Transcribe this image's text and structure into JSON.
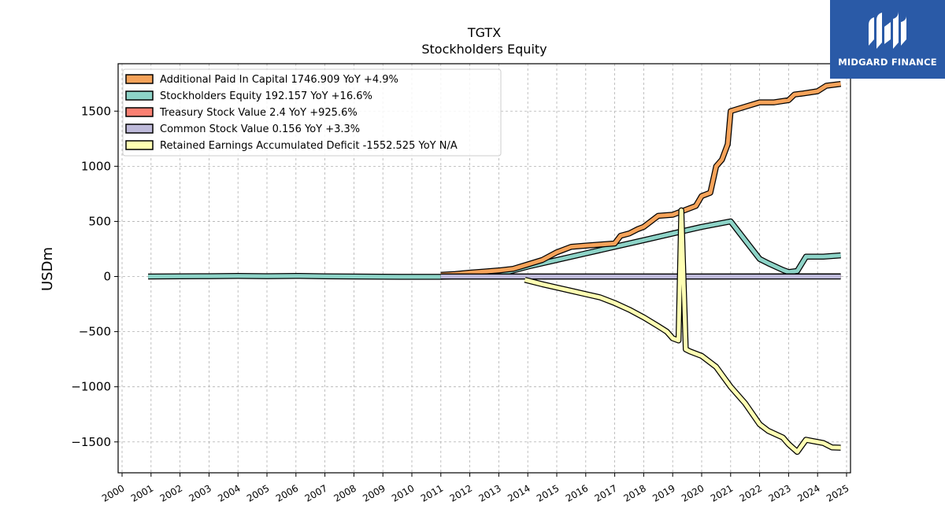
{
  "chart_data": {
    "type": "line",
    "title": "TGTX",
    "subtitle": "Stockholders  Equity",
    "ylabel": "USDm",
    "xlabel": "",
    "xlim": [
      2000,
      2025
    ],
    "ylim": [
      -1780,
      1930
    ],
    "xticks": [
      "2000",
      "2001",
      "2002",
      "2003",
      "2004",
      "2005",
      "2006",
      "2007",
      "2008",
      "2009",
      "2010",
      "2011",
      "2012",
      "2013",
      "2014",
      "2015",
      "2016",
      "2017",
      "2018",
      "2019",
      "2020",
      "2021",
      "2022",
      "2023",
      "2024",
      "2025"
    ],
    "yticks": [
      -1500,
      -1000,
      -500,
      0,
      500,
      1000,
      1500
    ],
    "ytick_labels": [
      "−1500",
      "−1000",
      "−500",
      "0",
      "500",
      "1000",
      "1500"
    ],
    "grid": true,
    "legend_position": "top-left",
    "series": [
      {
        "name": "Additional Paid In Capital",
        "legend": "Additional Paid In Capital  1746.909 YoY +4.9%",
        "color": "#f6a35a",
        "x": [
          2011.0,
          2011.5,
          2012.0,
          2012.5,
          2013.0,
          2013.5,
          2014.0,
          2014.5,
          2015.0,
          2015.5,
          2016.0,
          2016.5,
          2017.0,
          2017.2,
          2017.5,
          2017.8,
          2018.0,
          2018.5,
          2019.0,
          2019.5,
          2019.8,
          2020.0,
          2020.3,
          2020.5,
          2020.7,
          2020.9,
          2021.0,
          2021.5,
          2022.0,
          2022.5,
          2023.0,
          2023.2,
          2023.5,
          2024.0,
          2024.3,
          2024.8
        ],
        "y": [
          15,
          22,
          35,
          45,
          55,
          70,
          110,
          150,
          220,
          270,
          280,
          290,
          300,
          370,
          390,
          430,
          450,
          550,
          560,
          610,
          640,
          730,
          760,
          1000,
          1060,
          1200,
          1500,
          1540,
          1580,
          1580,
          1600,
          1650,
          1660,
          1680,
          1730,
          1746.909
        ]
      },
      {
        "name": "Stockholders Equity",
        "legend": "Stockholders Equity  192.157 YoY +16.6%",
        "color": "#8dd3c7",
        "x": [
          2000.9,
          2002.0,
          2003.0,
          2004.0,
          2005.0,
          2006.0,
          2007.0,
          2008.0,
          2009.0,
          2010.0,
          2011.0,
          2012.0,
          2013.0,
          2014.0,
          2015.0,
          2016.0,
          2017.0,
          2018.0,
          2019.0,
          2020.0,
          2021.0,
          2021.5,
          2022.0,
          2022.3,
          2022.8,
          2023.0,
          2023.3,
          2023.6,
          2023.8,
          2024.2,
          2024.8
        ],
        "y": [
          0,
          2,
          3,
          5,
          3,
          6,
          2,
          0,
          -2,
          -3,
          -3,
          10,
          20,
          90,
          150,
          210,
          270,
          330,
          390,
          450,
          500,
          330,
          160,
          120,
          60,
          40,
          50,
          180,
          180,
          180,
          192.157
        ]
      },
      {
        "name": "Treasury Stock Value",
        "legend": "Treasury Stock Value  2.4 YoY +925.6%",
        "color": "#fb8072",
        "x": [
          2011.0,
          2015.0,
          2020.0,
          2024.8
        ],
        "y": [
          0,
          0.1,
          0.3,
          2.4
        ]
      },
      {
        "name": "Common Stock Value",
        "legend": "Common Stock Value  0.156 YoY +3.3%",
        "color": "#bebada",
        "x": [
          2011.0,
          2024.8
        ],
        "y": [
          0,
          0.156
        ]
      },
      {
        "name": "Retained Earnings Accumulated Deficit",
        "legend": "Retained Earnings Accumulated Deficit  -1552.525 YoY N/A",
        "color": "#ffffb3",
        "x": [
          2013.9,
          2014.5,
          2015.0,
          2015.5,
          2016.0,
          2016.5,
          2017.0,
          2017.5,
          2018.0,
          2018.5,
          2018.8,
          2019.0,
          2019.2,
          2019.3,
          2019.45,
          2019.6,
          2020.0,
          2020.5,
          2021.0,
          2021.5,
          2022.0,
          2022.3,
          2022.8,
          2023.0,
          2023.3,
          2023.6,
          2023.8,
          2024.2,
          2024.5,
          2024.8
        ],
        "y": [
          -30,
          -70,
          -100,
          -130,
          -160,
          -190,
          -240,
          -300,
          -370,
          -450,
          -500,
          -560,
          -580,
          600,
          -660,
          -680,
          -720,
          -820,
          -1000,
          -1150,
          -1340,
          -1400,
          -1460,
          -1520,
          -1590,
          -1480,
          -1490,
          -1510,
          -1550,
          -1552.525
        ]
      }
    ]
  },
  "logo": {
    "text": "MIDGARD FINANCE",
    "bg_color": "#2a5aa7"
  }
}
